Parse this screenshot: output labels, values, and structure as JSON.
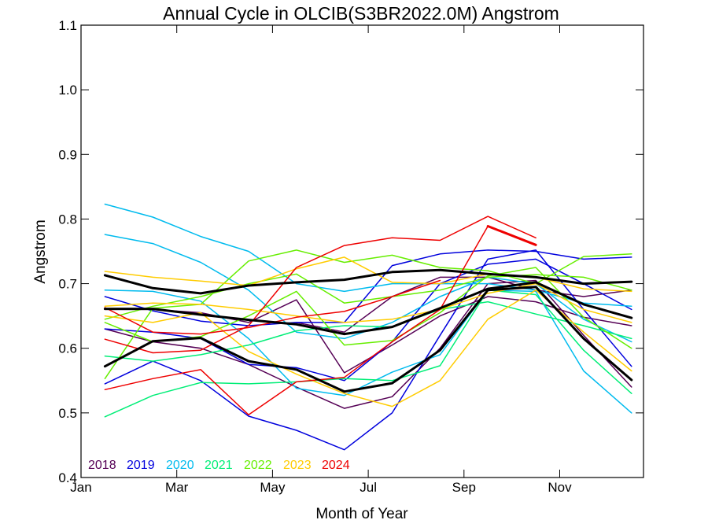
{
  "chart_data": {
    "type": "line",
    "title": "Annual Cycle in OLCIB(S3BR2022.0M) Angstrom",
    "xlabel": "Month of Year",
    "ylabel": "Angstrom",
    "xlim": [
      1,
      12.75
    ],
    "ylim": [
      0.4,
      1.1
    ],
    "x_ticks": [
      {
        "value": 1,
        "label": "Jan"
      },
      {
        "value": 3,
        "label": "Mar"
      },
      {
        "value": 5,
        "label": "May"
      },
      {
        "value": 7,
        "label": "Jul"
      },
      {
        "value": 9,
        "label": "Sep"
      },
      {
        "value": 11,
        "label": "Nov"
      }
    ],
    "y_ticks": [
      {
        "value": 0.4,
        "label": "0.4"
      },
      {
        "value": 0.5,
        "label": "0.5"
      },
      {
        "value": 0.6,
        "label": "0.6"
      },
      {
        "value": 0.7,
        "label": "0.7"
      },
      {
        "value": 0.8,
        "label": "0.8"
      },
      {
        "value": 0.9,
        "label": "0.9"
      },
      {
        "value": 1.0,
        "label": "1.0"
      },
      {
        "value": 1.1,
        "label": "1.1"
      }
    ],
    "legend_position": "bottom-left",
    "legend": [
      {
        "label": "2018",
        "color": "#550055"
      },
      {
        "label": "2019",
        "color": "#0000dd"
      },
      {
        "label": "2020",
        "color": "#00bbee"
      },
      {
        "label": "2021",
        "color": "#00ee77"
      },
      {
        "label": "2022",
        "color": "#66ee00"
      },
      {
        "label": "2023",
        "color": "#ffcc00"
      },
      {
        "label": "2024",
        "color": "#ee0000"
      }
    ],
    "series": [
      {
        "color": "#550055",
        "width": 1.5,
        "x": [
          1.5,
          2.5,
          3.5,
          4.5,
          5.5,
          6.5,
          7.5,
          8.5,
          9.5,
          10.5,
          11.5,
          12.5
        ],
        "y": [
          0.66,
          0.66,
          0.655,
          0.64,
          0.675,
          0.562,
          0.605,
          0.65,
          0.68,
          0.672,
          0.648,
          0.635
        ]
      },
      {
        "color": "#550055",
        "width": 1.5,
        "x": [
          1.5,
          2.5,
          3.5,
          4.5,
          5.5,
          6.5,
          7.5,
          8.5,
          9.5,
          10.5,
          11.5,
          12.5
        ],
        "y": [
          0.63,
          0.61,
          0.6,
          0.575,
          0.54,
          0.507,
          0.525,
          0.6,
          0.7,
          0.705,
          0.62,
          0.54
        ]
      },
      {
        "color": "#550055",
        "width": 1.5,
        "x": [
          5.5,
          6.5,
          7.5,
          8.5,
          9.5,
          10.5,
          11.5,
          12.5
        ],
        "y": [
          0.64,
          0.625,
          0.68,
          0.71,
          0.71,
          0.69,
          0.68,
          0.69
        ]
      },
      {
        "color": "#0000dd",
        "width": 1.5,
        "x": [
          1.5,
          2.5,
          3.5,
          4.5,
          5.5,
          6.5,
          7.5,
          8.5,
          9.5,
          10.5,
          11.5,
          12.5
        ],
        "y": [
          0.545,
          0.58,
          0.55,
          0.495,
          0.473,
          0.443,
          0.5,
          0.62,
          0.738,
          0.752,
          0.66,
          0.572
        ]
      },
      {
        "color": "#0000dd",
        "width": 1.5,
        "x": [
          1.5,
          2.5,
          3.5,
          4.5,
          5.5,
          6.5,
          7.5,
          8.5,
          9.5,
          10.5,
          11.5,
          12.5
        ],
        "y": [
          0.68,
          0.658,
          0.642,
          0.635,
          0.64,
          0.64,
          0.728,
          0.746,
          0.752,
          0.75,
          0.738,
          0.741
        ]
      },
      {
        "color": "#0000dd",
        "width": 1.5,
        "x": [
          1.5,
          2.5,
          3.5,
          4.5,
          5.5,
          6.5,
          7.5,
          8.5,
          9.5,
          10.5,
          11.5,
          12.5
        ],
        "y": [
          0.63,
          0.625,
          0.615,
          0.575,
          0.57,
          0.55,
          0.61,
          0.7,
          0.73,
          0.738,
          0.7,
          0.66
        ]
      },
      {
        "color": "#00bbee",
        "width": 1.5,
        "x": [
          1.5,
          2.5,
          3.5,
          4.5,
          5.5,
          6.5,
          7.5,
          8.5,
          9.5,
          10.5,
          11.5,
          12.5
        ],
        "y": [
          0.823,
          0.803,
          0.773,
          0.75,
          0.7,
          0.688,
          0.7,
          0.7,
          0.7,
          0.69,
          0.67,
          0.665
        ]
      },
      {
        "color": "#00bbee",
        "width": 1.5,
        "x": [
          1.5,
          2.5,
          3.5,
          4.5,
          5.5,
          6.5,
          7.5,
          8.5,
          9.5,
          10.5,
          11.5,
          12.5
        ],
        "y": [
          0.776,
          0.762,
          0.733,
          0.69,
          0.625,
          0.615,
          0.64,
          0.68,
          0.71,
          0.7,
          0.645,
          0.61
        ]
      },
      {
        "color": "#00bbee",
        "width": 1.5,
        "x": [
          1.5,
          2.5,
          3.5,
          4.5,
          5.5,
          6.5,
          7.5,
          8.5,
          9.5,
          10.5,
          11.5,
          12.5
        ],
        "y": [
          0.69,
          0.688,
          0.673,
          0.615,
          0.538,
          0.527,
          0.563,
          0.59,
          0.69,
          0.688,
          0.565,
          0.5
        ]
      },
      {
        "color": "#00ee77",
        "width": 1.5,
        "x": [
          1.5,
          2.5,
          3.5,
          4.5,
          5.5,
          6.5,
          7.5,
          8.5,
          9.5,
          10.5,
          11.5,
          12.5
        ],
        "y": [
          0.494,
          0.527,
          0.547,
          0.545,
          0.548,
          0.553,
          0.55,
          0.573,
          0.69,
          0.683,
          0.597,
          0.53
        ]
      },
      {
        "color": "#00ee77",
        "width": 1.5,
        "x": [
          1.5,
          2.5,
          3.5,
          4.5,
          5.5,
          6.5,
          7.5,
          8.5,
          9.5,
          10.5,
          11.5,
          12.5
        ],
        "y": [
          0.588,
          0.58,
          0.59,
          0.605,
          0.627,
          0.635,
          0.633,
          0.66,
          0.672,
          0.653,
          0.635,
          0.615
        ]
      },
      {
        "color": "#66ee00",
        "width": 1.5,
        "x": [
          1.5,
          2.5,
          3.5,
          4.5,
          5.5,
          6.5,
          7.5,
          8.5,
          9.5,
          10.5,
          11.5,
          12.5
        ],
        "y": [
          0.553,
          0.662,
          0.668,
          0.735,
          0.752,
          0.733,
          0.744,
          0.725,
          0.72,
          0.7,
          0.742,
          0.746
        ]
      },
      {
        "color": "#66ee00",
        "width": 1.5,
        "x": [
          1.5,
          2.5,
          3.5,
          4.5,
          5.5,
          6.5,
          7.5,
          8.5,
          9.5,
          10.5,
          11.5,
          12.5
        ],
        "y": [
          0.64,
          0.61,
          0.618,
          0.65,
          0.688,
          0.605,
          0.612,
          0.655,
          0.712,
          0.725,
          0.648,
          0.6
        ]
      },
      {
        "color": "#66ee00",
        "width": 1.5,
        "x": [
          1.5,
          2.5,
          3.5,
          4.5,
          5.5,
          6.5,
          7.5,
          8.5,
          9.5,
          10.5,
          11.5,
          12.5
        ],
        "y": [
          0.645,
          0.665,
          0.68,
          0.7,
          0.715,
          0.67,
          0.68,
          0.69,
          0.71,
          0.714,
          0.71,
          0.69
        ]
      },
      {
        "color": "#ffcc00",
        "width": 1.5,
        "x": [
          1.5,
          2.5,
          3.5,
          4.5,
          5.5,
          6.5,
          7.5,
          8.5,
          9.5,
          10.5,
          11.5,
          12.5
        ],
        "y": [
          0.719,
          0.71,
          0.704,
          0.697,
          0.723,
          0.741,
          0.702,
          0.7,
          0.715,
          0.71,
          0.692,
          0.688
        ]
      },
      {
        "color": "#ffcc00",
        "width": 1.5,
        "x": [
          1.5,
          2.5,
          3.5,
          4.5,
          5.5,
          6.5,
          7.5,
          8.5,
          9.5,
          10.5,
          11.5,
          12.5
        ],
        "y": [
          0.665,
          0.67,
          0.668,
          0.66,
          0.65,
          0.64,
          0.645,
          0.66,
          0.685,
          0.7,
          0.66,
          0.64
        ]
      },
      {
        "color": "#ffcc00",
        "width": 1.5,
        "x": [
          1.5,
          2.5,
          3.5,
          4.5,
          5.5,
          6.5,
          7.5,
          8.5,
          9.5,
          10.5,
          11.5,
          12.5
        ],
        "y": [
          0.65,
          0.64,
          0.655,
          0.595,
          0.56,
          0.53,
          0.51,
          0.55,
          0.645,
          0.69,
          0.625,
          0.565
        ]
      },
      {
        "color": "#ee0000",
        "width": 1.5,
        "x": [
          1.5,
          2.5,
          3.5,
          4.5,
          5.5,
          6.5,
          7.5,
          8.5,
          9.5,
          10.5
        ],
        "y": [
          0.536,
          0.553,
          0.567,
          0.497,
          0.548,
          0.555,
          0.61,
          0.66,
          0.789,
          0.76
        ]
      },
      {
        "color": "#ee0000",
        "width": 1.5,
        "x": [
          1.5,
          2.5,
          3.5,
          4.5,
          5.5,
          6.5,
          7.5,
          8.5,
          9.5,
          10.5
        ],
        "y": [
          0.614,
          0.593,
          0.597,
          0.635,
          0.725,
          0.759,
          0.771,
          0.767,
          0.804,
          0.771
        ]
      },
      {
        "color": "#ee0000",
        "width": 1.5,
        "x": [
          1.5,
          2.5,
          3.5,
          4.5,
          5.5,
          6.5,
          7.5,
          8.5
        ],
        "y": [
          0.663,
          0.625,
          0.622,
          0.632,
          0.648,
          0.657,
          0.68,
          0.705
        ]
      },
      {
        "color": "#ee0000",
        "width": 3,
        "x": [
          9.5,
          10.5
        ],
        "y": [
          0.789,
          0.76
        ]
      },
      {
        "color": "#000000",
        "width": 3,
        "x": [
          1.5,
          2.5,
          3.5,
          4.5,
          5.5,
          6.5,
          7.5,
          8.5,
          9.5,
          10.5,
          11.5,
          12.5
        ],
        "y": [
          0.713,
          0.693,
          0.685,
          0.697,
          0.702,
          0.706,
          0.718,
          0.721,
          0.715,
          0.71,
          0.7,
          0.703
        ]
      },
      {
        "color": "#000000",
        "width": 3,
        "x": [
          1.5,
          2.5,
          3.5,
          4.5,
          5.5,
          6.5,
          7.5,
          8.5,
          9.5,
          10.5,
          11.5,
          12.5
        ],
        "y": [
          0.661,
          0.661,
          0.652,
          0.644,
          0.637,
          0.622,
          0.633,
          0.662,
          0.692,
          0.702,
          0.668,
          0.647
        ]
      },
      {
        "color": "#000000",
        "width": 3,
        "x": [
          1.5,
          2.5,
          3.5,
          4.5,
          5.5,
          6.5,
          7.5,
          8.5,
          9.5,
          10.5,
          11.5,
          12.5
        ],
        "y": [
          0.572,
          0.611,
          0.616,
          0.58,
          0.567,
          0.533,
          0.546,
          0.597,
          0.69,
          0.695,
          0.615,
          0.551
        ]
      }
    ]
  }
}
